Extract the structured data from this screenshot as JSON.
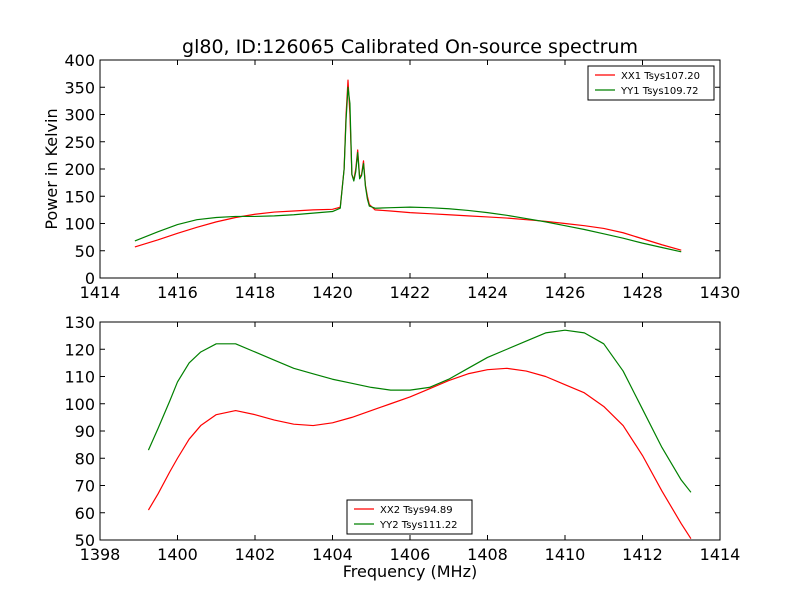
{
  "title": "gl80, ID:126065 Calibrated On-source spectrum",
  "chart_data": [
    {
      "type": "line",
      "xlabel": "",
      "ylabel": "Power in Kelvin",
      "xlim": [
        1414,
        1430
      ],
      "ylim": [
        0,
        400
      ],
      "xticks": [
        1414,
        1416,
        1418,
        1420,
        1422,
        1424,
        1426,
        1428,
        1430
      ],
      "yticks": [
        0,
        50,
        100,
        150,
        200,
        250,
        300,
        350,
        400
      ],
      "grid": false,
      "legend_position": "upper-right",
      "series": [
        {
          "name": "XX1 Tsys107.20",
          "color": "#ff0000",
          "x": [
            1414.9,
            1415.5,
            1416.0,
            1416.5,
            1417.0,
            1417.5,
            1418.0,
            1418.5,
            1419.0,
            1419.5,
            1420.0,
            1420.2,
            1420.3,
            1420.35,
            1420.4,
            1420.45,
            1420.5,
            1420.55,
            1420.6,
            1420.65,
            1420.7,
            1420.75,
            1420.8,
            1420.85,
            1420.9,
            1420.95,
            1421.1,
            1421.5,
            1422.0,
            1422.5,
            1423.0,
            1423.5,
            1424.0,
            1424.5,
            1425.0,
            1425.5,
            1426.0,
            1426.5,
            1427.0,
            1427.5,
            1428.0,
            1428.5,
            1429.0
          ],
          "y": [
            57,
            70,
            82,
            93,
            103,
            111,
            117,
            121,
            123,
            125,
            126,
            130,
            200,
            300,
            363,
            300,
            190,
            180,
            200,
            235,
            185,
            190,
            215,
            170,
            150,
            135,
            125,
            123,
            120,
            118,
            116,
            114,
            112,
            110,
            107,
            104,
            100,
            96,
            91,
            83,
            72,
            61,
            51
          ]
        },
        {
          "name": "YY1 Tsys109.72",
          "color": "#008000",
          "x": [
            1414.9,
            1415.5,
            1416.0,
            1416.5,
            1417.0,
            1417.5,
            1418.0,
            1418.5,
            1419.0,
            1419.5,
            1420.0,
            1420.2,
            1420.3,
            1420.35,
            1420.4,
            1420.45,
            1420.5,
            1420.55,
            1420.6,
            1420.65,
            1420.7,
            1420.75,
            1420.8,
            1420.85,
            1420.9,
            1420.95,
            1421.1,
            1421.5,
            1422.0,
            1422.5,
            1423.0,
            1423.5,
            1424.0,
            1424.5,
            1425.0,
            1425.5,
            1426.0,
            1426.5,
            1427.0,
            1427.5,
            1428.0,
            1428.5,
            1429.0
          ],
          "y": [
            68,
            85,
            98,
            107,
            111,
            113,
            113,
            114,
            116,
            119,
            122,
            128,
            200,
            290,
            350,
            320,
            190,
            178,
            195,
            230,
            182,
            188,
            210,
            168,
            145,
            132,
            128,
            129,
            130,
            129,
            127,
            124,
            120,
            115,
            109,
            103,
            96,
            89,
            81,
            73,
            64,
            56,
            48
          ]
        }
      ]
    },
    {
      "type": "line",
      "xlabel": "Frequency (MHz)",
      "ylabel": "",
      "xlim": [
        1398,
        1414
      ],
      "ylim": [
        50,
        130
      ],
      "xticks": [
        1398,
        1400,
        1402,
        1404,
        1406,
        1408,
        1410,
        1412,
        1414
      ],
      "yticks": [
        50,
        60,
        70,
        80,
        90,
        100,
        110,
        120,
        130
      ],
      "grid": false,
      "legend_position": "lower-center",
      "series": [
        {
          "name": "XX2 Tsys94.89",
          "color": "#ff0000",
          "x": [
            1399.25,
            1399.5,
            1399.8,
            1400.0,
            1400.3,
            1400.6,
            1401.0,
            1401.5,
            1402.0,
            1402.5,
            1403.0,
            1403.5,
            1404.0,
            1404.5,
            1405.0,
            1405.5,
            1406.0,
            1406.5,
            1407.0,
            1407.5,
            1408.0,
            1408.5,
            1409.0,
            1409.5,
            1410.0,
            1410.5,
            1411.0,
            1411.5,
            1412.0,
            1412.5,
            1413.0,
            1413.25
          ],
          "y": [
            61,
            67,
            75,
            80,
            87,
            92,
            96,
            97.5,
            96,
            94,
            92.5,
            92,
            93,
            95,
            97.5,
            100,
            102.5,
            105.5,
            108.5,
            111,
            112.5,
            113,
            112,
            110,
            107,
            104,
            99,
            92,
            81,
            68,
            56,
            50.5
          ]
        },
        {
          "name": "YY2 Tsys111.22",
          "color": "#008000",
          "x": [
            1399.25,
            1399.5,
            1399.8,
            1400.0,
            1400.3,
            1400.6,
            1401.0,
            1401.5,
            1402.0,
            1402.5,
            1403.0,
            1403.5,
            1404.0,
            1404.5,
            1405.0,
            1405.5,
            1406.0,
            1406.5,
            1407.0,
            1407.5,
            1408.0,
            1408.5,
            1409.0,
            1409.5,
            1410.0,
            1410.5,
            1411.0,
            1411.5,
            1412.0,
            1412.5,
            1413.0,
            1413.25
          ],
          "y": [
            83,
            91,
            101,
            108,
            115,
            119,
            122,
            122,
            119,
            116,
            113,
            111,
            109,
            107.5,
            106,
            105,
            105,
            106,
            109,
            113,
            117,
            120,
            123,
            126,
            127,
            126,
            122,
            112,
            98,
            84,
            72,
            67.5
          ]
        }
      ]
    }
  ]
}
